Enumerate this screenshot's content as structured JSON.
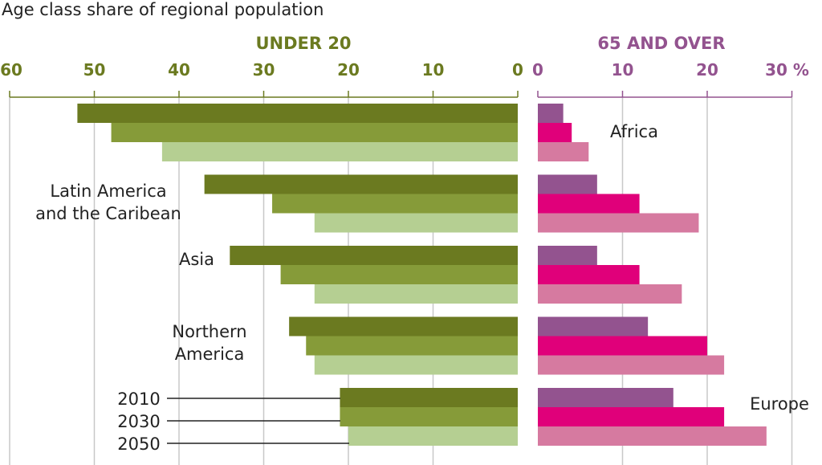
{
  "caption": "Age class share of regional population",
  "chart_data": {
    "type": "bar",
    "orientation": "horizontal",
    "title": "Age class share of regional population",
    "panels": [
      {
        "key": "under20",
        "title": "UNDER 20",
        "ticks": [
          "60",
          "50",
          "40",
          "30",
          "20",
          "10",
          "0"
        ],
        "xlim": [
          0,
          60
        ],
        "direction": "right-to-left"
      },
      {
        "key": "over65",
        "title": "65 AND OVER",
        "ticks": [
          "0",
          "10",
          "20",
          "30 %"
        ],
        "xlim": [
          0,
          30
        ],
        "direction": "left-to-right"
      }
    ],
    "categories": [
      "Africa",
      "Latin America and the Caribean",
      "Asia",
      "Northern America",
      "Europe"
    ],
    "category_labels": [
      [
        "Africa"
      ],
      [
        "Latin America",
        "and the Caribean"
      ],
      [
        "Asia"
      ],
      [
        "Northern",
        "America"
      ],
      [
        "Europe"
      ]
    ],
    "series": [
      {
        "name": "2010",
        "under20": [
          52,
          37,
          34,
          27,
          21
        ],
        "over65": [
          3,
          7,
          7,
          13,
          16
        ]
      },
      {
        "name": "2030",
        "under20": [
          48,
          29,
          28,
          25,
          21
        ],
        "over65": [
          4,
          12,
          12,
          20,
          22
        ]
      },
      {
        "name": "2050",
        "under20": [
          42,
          24,
          24,
          24,
          20
        ],
        "over65": [
          6,
          19,
          17,
          22,
          27
        ]
      }
    ],
    "colors": {
      "under20": [
        "#6b7a20",
        "#869b39",
        "#b5cf92"
      ],
      "over65": [
        "#93538f",
        "#e0007a",
        "#d67aa0"
      ],
      "under20_title": "#6b7a20",
      "over65_title": "#93538f",
      "grid": "#c8c8c8"
    },
    "grid": true
  }
}
